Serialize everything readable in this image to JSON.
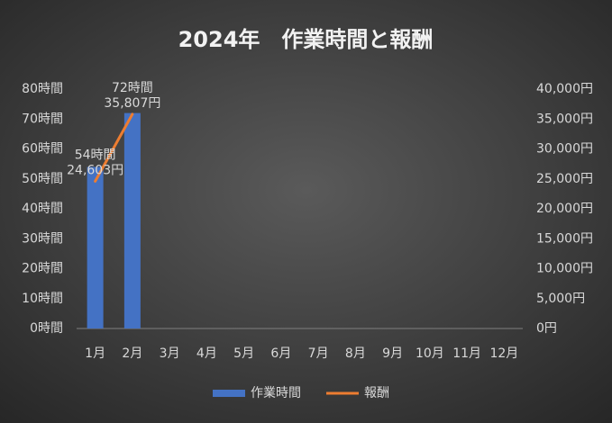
{
  "chart_data": {
    "type": "combo",
    "title": "2024年　作業時間と報酬",
    "categories": [
      "1月",
      "2月",
      "3月",
      "4月",
      "5月",
      "6月",
      "7月",
      "8月",
      "9月",
      "10月",
      "11月",
      "12月"
    ],
    "series": [
      {
        "name": "作業時間",
        "type": "bar",
        "color": "#4472c4",
        "values": [
          54,
          72,
          null,
          null,
          null,
          null,
          null,
          null,
          null,
          null,
          null,
          null
        ],
        "value_labels": [
          "54時間",
          "72時間",
          null,
          null,
          null,
          null,
          null,
          null,
          null,
          null,
          null,
          null
        ]
      },
      {
        "name": "報酬",
        "type": "line",
        "axis": "y2",
        "color": "#ed7d31",
        "values": [
          24603,
          35807,
          null,
          null,
          null,
          null,
          null,
          null,
          null,
          null,
          null,
          null
        ],
        "value_labels": [
          "24,603円",
          "35,807円",
          null,
          null,
          null,
          null,
          null,
          null,
          null,
          null,
          null,
          null
        ]
      }
    ],
    "ylim": [
      0,
      80
    ],
    "yticks": [
      {
        "value": 0,
        "label": "0時間"
      },
      {
        "value": 10,
        "label": "10時間"
      },
      {
        "value": 20,
        "label": "20時間"
      },
      {
        "value": 30,
        "label": "30時間"
      },
      {
        "value": 40,
        "label": "40時間"
      },
      {
        "value": 50,
        "label": "50時間"
      },
      {
        "value": 60,
        "label": "60時間"
      },
      {
        "value": 70,
        "label": "70時間"
      },
      {
        "value": 80,
        "label": "80時間"
      }
    ],
    "y2lim": [
      0,
      40000
    ],
    "y2ticks": [
      {
        "value": 0,
        "label": "0円"
      },
      {
        "value": 5000,
        "label": "5,000円"
      },
      {
        "value": 10000,
        "label": "10,000円"
      },
      {
        "value": 15000,
        "label": "15,000円"
      },
      {
        "value": 20000,
        "label": "20,000円"
      },
      {
        "value": 25000,
        "label": "25,000円"
      },
      {
        "value": 30000,
        "label": "30,000円"
      },
      {
        "value": 35000,
        "label": "35,000円"
      },
      {
        "value": 40000,
        "label": "40,000円"
      }
    ],
    "grid": false,
    "legend": "bottom"
  }
}
